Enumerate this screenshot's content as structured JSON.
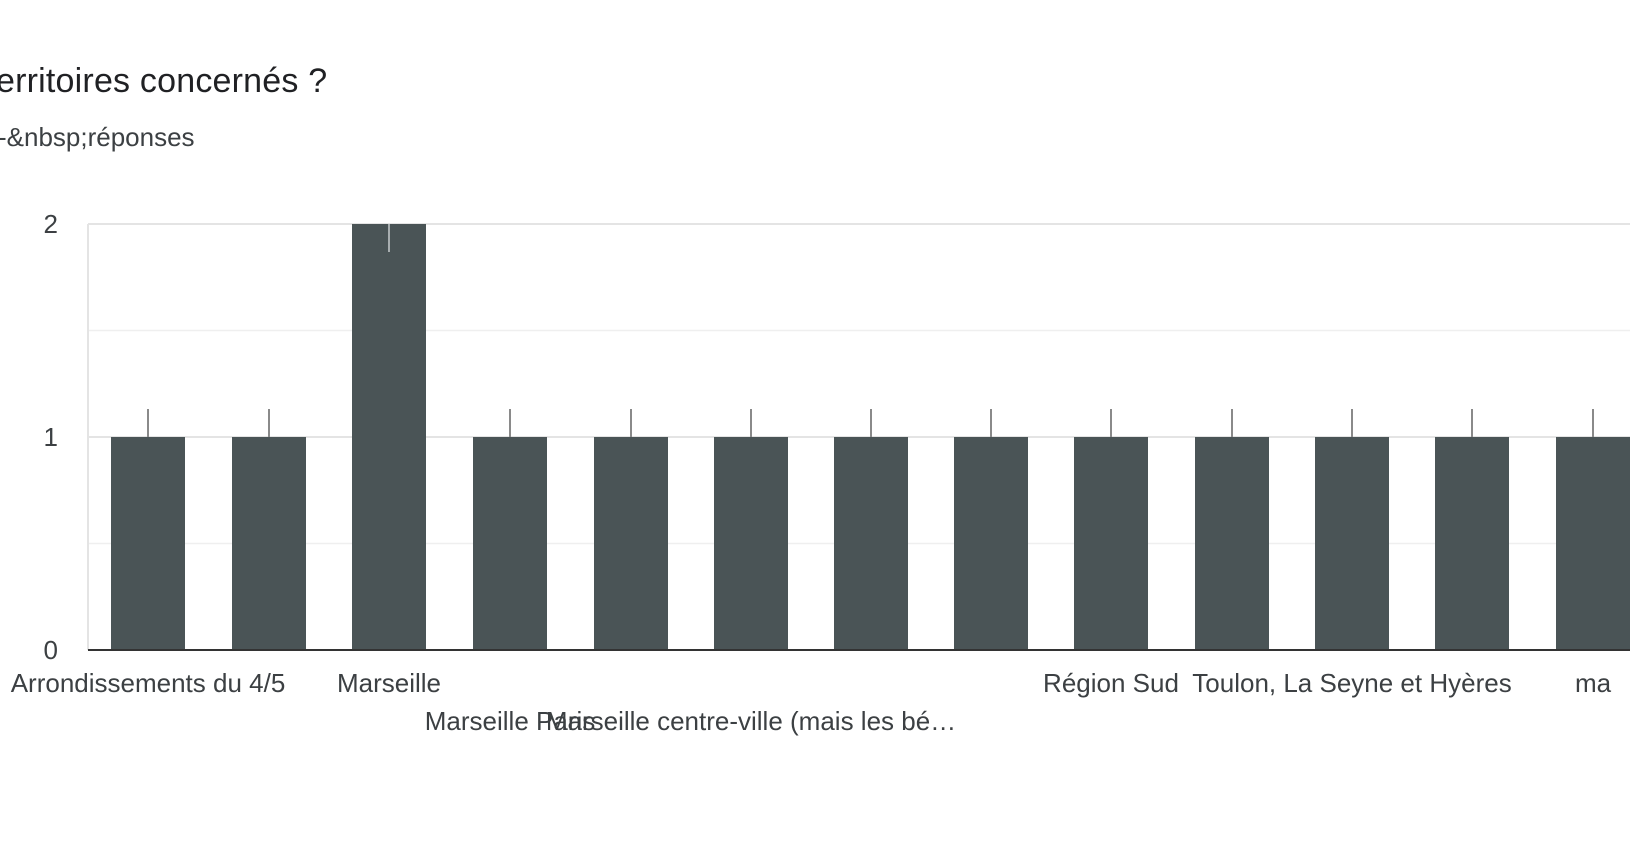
{
  "question": {
    "title": "erritoires concernés ?",
    "responses": "-&nbsp;réponses"
  },
  "colors": {
    "bar": "#4a5456",
    "grid": "#ebebeb",
    "axis": "#333333",
    "cap": "#8a8a8a"
  },
  "chart_data": {
    "type": "bar",
    "categories": [
      "Arrondissements du 4/5",
      "",
      "Marseille",
      "Marseille Paris",
      "",
      "Marseille centre-ville (mais les bé…",
      "",
      "",
      "Région Sud",
      "",
      "Toulon, La Seyne et Hyères",
      "",
      "ma"
    ],
    "values": [
      1,
      1,
      2,
      1,
      1,
      1,
      1,
      1,
      1,
      1,
      1,
      1,
      1
    ],
    "y_ticks": [
      "0",
      "1",
      "2"
    ],
    "ylim": [
      0,
      2
    ],
    "grid": true,
    "legend": "none"
  }
}
